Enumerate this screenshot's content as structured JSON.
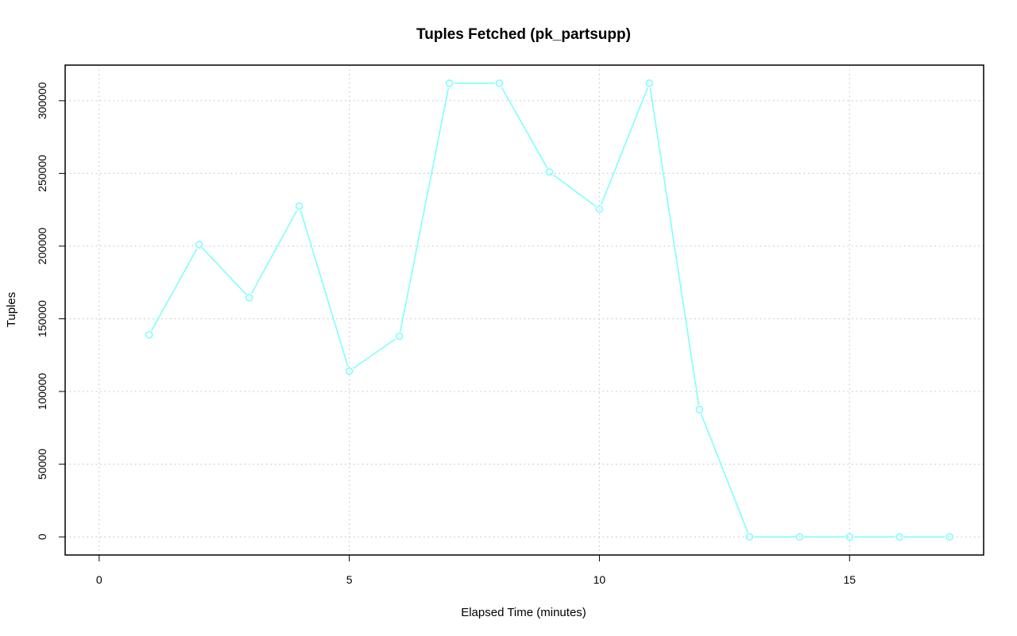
{
  "chart_data": {
    "type": "line",
    "title": "Tuples Fetched (pk_partsupp)",
    "xlabel": "Elapsed Time (minutes)",
    "ylabel": "Tuples",
    "xlim": [
      -0.68,
      17.68
    ],
    "ylim": [
      -12480,
      324480
    ],
    "x_ticks": [
      0,
      5,
      10,
      15
    ],
    "x_tick_labels": [
      "0",
      "5",
      "10",
      "15"
    ],
    "y_ticks": [
      0,
      50000,
      100000,
      150000,
      200000,
      250000,
      300000
    ],
    "y_tick_labels": [
      "0",
      "50000",
      "100000",
      "150000",
      "200000",
      "250000",
      "300000"
    ],
    "grid": true,
    "series": [
      {
        "color": "#7fffff",
        "marker": "open-circle",
        "x": [
          1,
          2,
          3,
          4,
          5,
          6,
          7,
          8,
          9,
          10,
          11,
          12,
          13,
          14,
          15,
          16,
          17
        ],
        "y": [
          139000,
          201000,
          164500,
          227500,
          114000,
          138000,
          312000,
          312000,
          251000,
          225500,
          312000,
          87500,
          0,
          0,
          0,
          0,
          0
        ]
      }
    ]
  }
}
